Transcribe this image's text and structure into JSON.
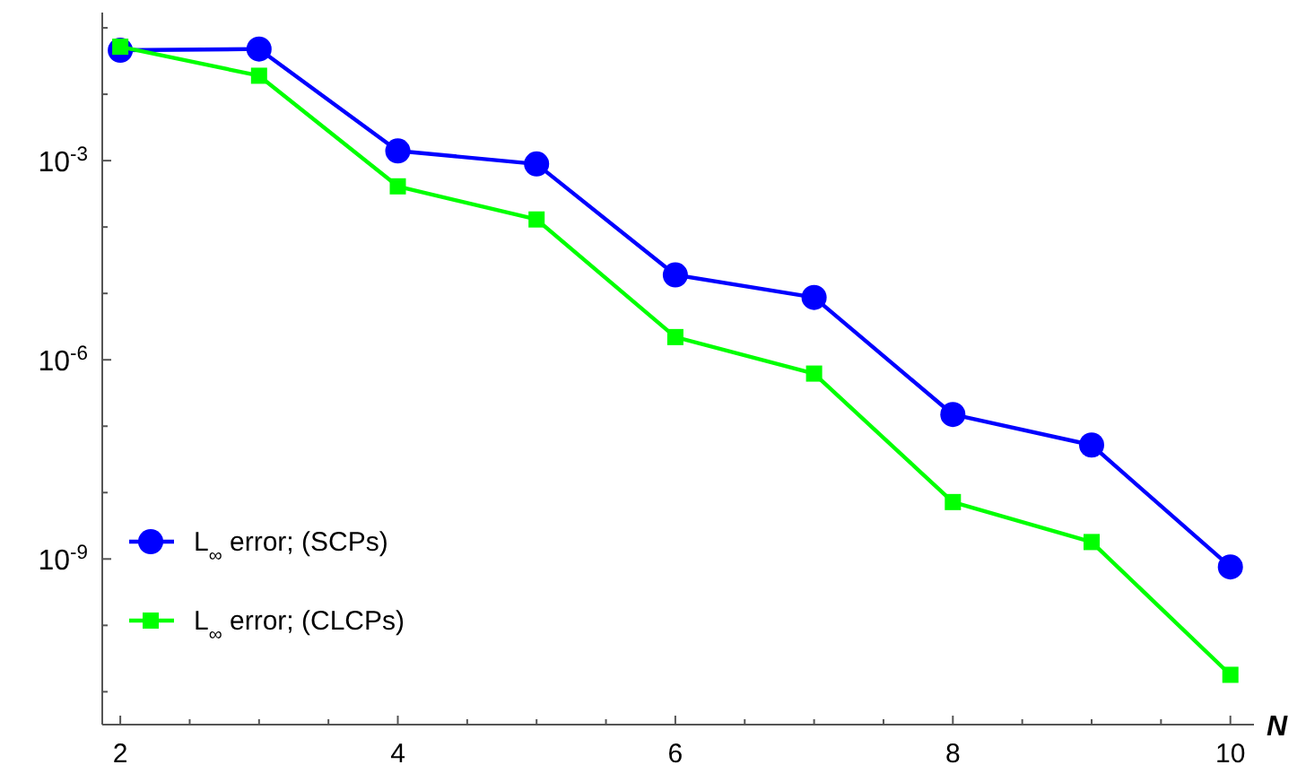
{
  "chart_data": {
    "type": "line",
    "xlabel": "N",
    "log": "y",
    "x": [
      2,
      3,
      4,
      5,
      6,
      7,
      8,
      9,
      10
    ],
    "xlim": [
      1.87,
      10.17
    ],
    "xticks": [
      2,
      {
        "value": 2.5,
        "label": null
      },
      {
        "value": 3,
        "label": null
      },
      {
        "value": 3.5,
        "label": null
      },
      4,
      {
        "value": 4.5,
        "label": null
      },
      {
        "value": 5,
        "label": null
      },
      {
        "value": 5.5,
        "label": null
      },
      6,
      {
        "value": 6.5,
        "label": null
      },
      {
        "value": 7,
        "label": null
      },
      {
        "value": 7.5,
        "label": null
      },
      8,
      {
        "value": 8.5,
        "label": null
      },
      {
        "value": 9,
        "label": null
      },
      {
        "value": 9.5,
        "label": null
      },
      10
    ],
    "ylim": [
      3.2e-12,
      0.17
    ],
    "yticks": [
      {
        "value": 0.1,
        "label": null
      },
      {
        "value": 0.01,
        "label": null
      },
      {
        "value": 0.001,
        "label": "10$^{-3}$"
      },
      {
        "value": 0.0001,
        "label": null
      },
      {
        "value": 1e-05,
        "label": null
      },
      {
        "value": 1e-06,
        "label": "10$^{-6}$"
      },
      {
        "value": 1e-07,
        "label": null
      },
      {
        "value": 1e-08,
        "label": null
      },
      {
        "value": 1e-09,
        "label": "10$^{-9}$"
      },
      {
        "value": 1e-10,
        "label": null
      },
      {
        "value": 1e-11,
        "label": null
      }
    ],
    "grid": false,
    "legend": "bottom left",
    "line_style": "solid",
    "series": [
      {
        "name": "L$_{∞}$ error; (SCPs)",
        "color": "#0000ff",
        "marker": "circle",
        "values": [
          0.046,
          0.048,
          0.0014,
          0.00089,
          1.9e-05,
          8.7e-06,
          1.5e-07,
          5.2e-08,
          7.6e-10
        ]
      },
      {
        "name": "L$_{∞}$ error; (CLCPs)",
        "color": "#00ff00",
        "marker": "square",
        "values": [
          0.052,
          0.019,
          0.00041,
          0.00013,
          2.2e-06,
          6.2e-07,
          7.2e-09,
          1.8e-09,
          1.8e-11
        ]
      }
    ]
  }
}
